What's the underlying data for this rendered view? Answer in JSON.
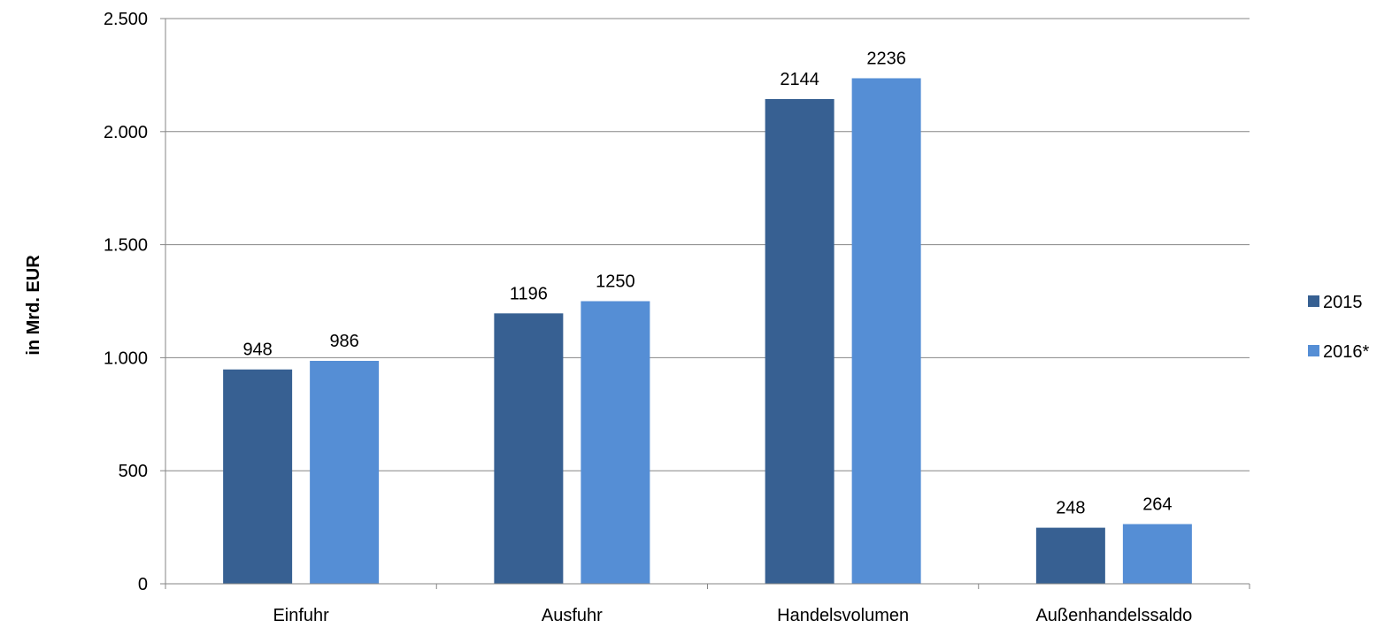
{
  "chart_data": {
    "type": "bar",
    "categories": [
      "Einfuhr",
      "Ausfuhr",
      "Handelsvolumen",
      "Außenhandelssaldo"
    ],
    "series": [
      {
        "name": "2015",
        "values": [
          948,
          1196,
          2144,
          248
        ],
        "color": "#376092"
      },
      {
        "name": "2016*",
        "values": [
          986,
          1250,
          2236,
          264
        ],
        "color": "#558ED5"
      }
    ],
    "data_labels": [
      [
        "948",
        "1196",
        "2144",
        "248"
      ],
      [
        "986",
        "1250",
        "2236",
        "264"
      ]
    ],
    "title": "",
    "xlabel": "",
    "ylabel": "in Mrd. EUR",
    "ylim": [
      0,
      2500
    ],
    "yticks": [
      0,
      500,
      1000,
      1500,
      2000,
      2500
    ],
    "ytick_labels": [
      "0",
      "500",
      "1.000",
      "1.500",
      "2.000",
      "2.500"
    ],
    "grid": true,
    "gridline_color": "#868686",
    "legend": "right"
  }
}
